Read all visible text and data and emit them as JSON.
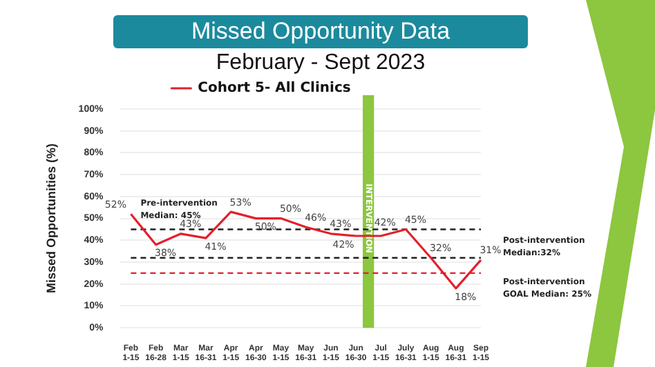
{
  "chart_data": {
    "type": "line",
    "title": "Missed Opportunity Data",
    "subtitle": "February - Sept 2023",
    "ylabel": "Missed Opportunities (%)",
    "categories": [
      "Feb 1-15",
      "Feb 16-28",
      "Mar 1-15",
      "Mar 16-31",
      "Apr 1-15",
      "Apr 16-30",
      "May 1-15",
      "May 16-31",
      "Jun 1-15",
      "Jun 16-30",
      "Jul 1-15",
      "July 16-31",
      "Aug 1-15",
      "Aug 16-31",
      "Sep 1-15"
    ],
    "series": [
      {
        "name": "Cohort 5- All Clinics",
        "color": "#e3202b",
        "values": [
          52,
          38,
          43,
          41,
          53,
          50,
          50,
          46,
          43,
          42,
          42,
          45,
          32,
          18,
          31
        ],
        "value_labels": [
          "52%",
          "38%",
          "43%",
          "41%",
          "53%",
          "50%",
          "50%",
          "46%",
          "43%",
          "42%",
          "42%",
          "45%",
          "32%",
          "18%",
          "31%"
        ]
      }
    ],
    "ylim": [
      0,
      100
    ],
    "yticks": [
      {
        "value": 0,
        "label": "0%"
      },
      {
        "value": 10,
        "label": "10%"
      },
      {
        "value": 20,
        "label": "20%"
      },
      {
        "value": 30,
        "label": "30%"
      },
      {
        "value": 40,
        "label": "40%"
      },
      {
        "value": 50,
        "label": "50%"
      },
      {
        "value": 60,
        "label": "60%"
      },
      {
        "value": 70,
        "label": "70%"
      },
      {
        "value": 80,
        "label": "80%"
      },
      {
        "value": 90,
        "label": "90%"
      },
      {
        "value": 100,
        "label": "100%"
      }
    ],
    "ref_lines": [
      {
        "axis": "y",
        "value": 45,
        "label": "Pre-intervention Median: 45%",
        "color": "#222222",
        "line_style": "dashed"
      },
      {
        "axis": "y",
        "value": 32,
        "label": "Post-intervention Median:32%",
        "color": "#222222",
        "line_style": "dashed"
      },
      {
        "axis": "y",
        "value": 25,
        "label": "Post-intervention GOAL Median: 25%",
        "color": "#e3202b",
        "line_style": "dashed"
      }
    ],
    "bands": [
      {
        "axis": "x",
        "from": "Jun 16-30",
        "to": "Jul 1-15",
        "label": "INTERVENTION",
        "color": "#8dc63f"
      }
    ],
    "grid": "y",
    "legend": "top",
    "marker": "none",
    "line_style": "solid"
  }
}
